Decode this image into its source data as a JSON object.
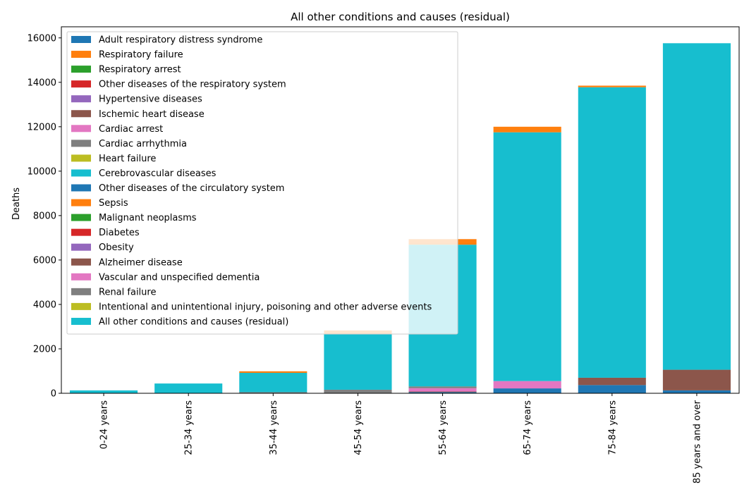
{
  "chart_data": {
    "type": "bar",
    "stacked": true,
    "title": "All other conditions and causes (residual)",
    "xlabel": "",
    "ylabel": "Deaths",
    "ylim": [
      0,
      16500
    ],
    "yticks": [
      0,
      2000,
      4000,
      6000,
      8000,
      10000,
      12000,
      14000,
      16000
    ],
    "grid": false,
    "legend_position": "top-left",
    "categories": [
      "0-24 years",
      "25-34 years",
      "35-44 years",
      "45-54 years",
      "55-64 years",
      "65-74 years",
      "75-84 years",
      "85 years and over"
    ],
    "series": [
      {
        "name": "Adult respiratory distress syndrome",
        "color": "#1f77b4",
        "values": [
          0,
          0,
          0,
          0,
          0,
          0,
          0,
          0
        ]
      },
      {
        "name": "Respiratory failure",
        "color": "#ff7f0e",
        "values": [
          0,
          0,
          0,
          0,
          0,
          0,
          0,
          0
        ]
      },
      {
        "name": "Respiratory arrest",
        "color": "#2ca02c",
        "values": [
          0,
          0,
          0,
          0,
          0,
          0,
          0,
          0
        ]
      },
      {
        "name": "Other diseases of the respiratory system",
        "color": "#d62728",
        "values": [
          0,
          0,
          0,
          0,
          0,
          0,
          0,
          0
        ]
      },
      {
        "name": "Hypertensive diseases",
        "color": "#9467bd",
        "values": [
          0,
          0,
          0,
          0,
          0,
          0,
          0,
          0
        ]
      },
      {
        "name": "Ischemic heart disease",
        "color": "#8c564b",
        "values": [
          0,
          0,
          0,
          0,
          0,
          0,
          0,
          0
        ]
      },
      {
        "name": "Cardiac arrest",
        "color": "#e377c2",
        "values": [
          0,
          0,
          0,
          0,
          0,
          0,
          0,
          0
        ]
      },
      {
        "name": "Cardiac arrhythmia",
        "color": "#7f7f7f",
        "values": [
          0,
          0,
          0,
          0,
          0,
          0,
          0,
          0
        ]
      },
      {
        "name": "Heart failure",
        "color": "#bcbd22",
        "values": [
          0,
          0,
          0,
          0,
          0,
          0,
          0,
          0
        ]
      },
      {
        "name": "Cerebrovascular diseases",
        "color": "#17becf",
        "values": [
          0,
          0,
          0,
          0,
          0,
          0,
          0,
          0
        ]
      },
      {
        "name": "Other diseases of the circulatory system",
        "color": "#1f77b4",
        "values": [
          0,
          0,
          0,
          0,
          50,
          220,
          370,
          130
        ]
      },
      {
        "name": "Sepsis",
        "color": "#ff7f0e",
        "values": [
          0,
          0,
          0,
          0,
          0,
          0,
          0,
          0
        ]
      },
      {
        "name": "Malignant neoplasms",
        "color": "#2ca02c",
        "values": [
          0,
          0,
          0,
          0,
          0,
          0,
          0,
          0
        ]
      },
      {
        "name": "Diabetes",
        "color": "#d62728",
        "values": [
          0,
          0,
          0,
          0,
          0,
          0,
          0,
          0
        ]
      },
      {
        "name": "Obesity",
        "color": "#9467bd",
        "values": [
          0,
          0,
          0,
          0,
          0,
          0,
          0,
          0
        ]
      },
      {
        "name": "Alzheimer disease",
        "color": "#8c564b",
        "values": [
          0,
          0,
          0,
          0,
          30,
          0,
          330,
          930
        ]
      },
      {
        "name": "Vascular and unspecified dementia",
        "color": "#e377c2",
        "values": [
          0,
          0,
          0,
          0,
          150,
          330,
          0,
          0
        ]
      },
      {
        "name": "Renal failure",
        "color": "#7f7f7f",
        "values": [
          0,
          0,
          50,
          160,
          80,
          0,
          0,
          0
        ]
      },
      {
        "name": "Intentional and unintentional injury, poisoning and other adverse events",
        "color": "#bcbd22",
        "values": [
          0,
          0,
          0,
          0,
          0,
          0,
          0,
          0
        ]
      },
      {
        "name": "All other conditions and causes (residual)",
        "color": "#17becf",
        "values": [
          130,
          440,
          870,
          2490,
          6380,
          11200,
          13080,
          14700
        ]
      },
      {
        "name": "",
        "color": "#ff7f0e",
        "values": [
          0,
          0,
          70,
          180,
          250,
          250,
          70,
          0
        ]
      },
      {
        "name": "",
        "color": "#ffe6d5",
        "values": [
          0,
          0,
          0,
          0,
          0,
          0,
          0,
          0
        ]
      }
    ]
  }
}
